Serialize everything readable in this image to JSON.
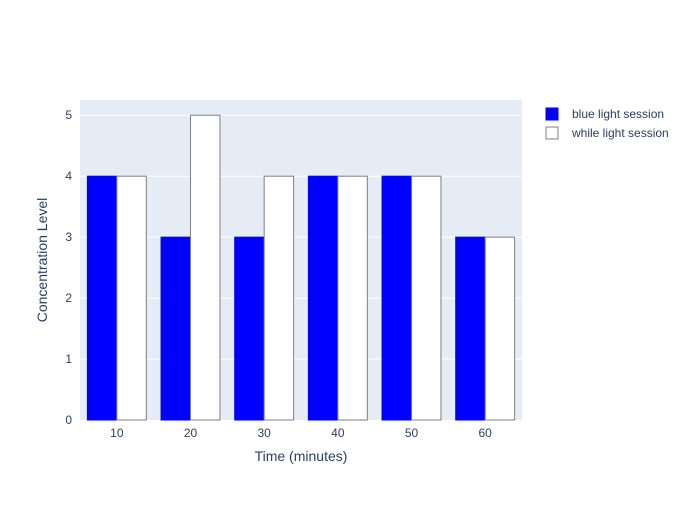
{
  "chart_data": {
    "type": "bar",
    "title": "",
    "xlabel": "Time (minutes)",
    "ylabel": "Concentration Level",
    "categories": [
      "10",
      "20",
      "30",
      "40",
      "50",
      "60"
    ],
    "series": [
      {
        "name": "blue light session",
        "values": [
          4,
          3,
          3,
          4,
          4,
          3
        ],
        "color": "#0000ff",
        "outline": "#0000ff"
      },
      {
        "name": "while light session",
        "values": [
          4,
          5,
          4,
          4,
          4,
          3
        ],
        "color": "#ffffff",
        "outline": "#7f7f7f"
      }
    ],
    "ylim": [
      0,
      5.25
    ],
    "yticks": [
      0,
      1,
      2,
      3,
      4,
      5
    ],
    "grid": true,
    "legend_position": "top-right",
    "plot_background": "#e5ecf6"
  }
}
